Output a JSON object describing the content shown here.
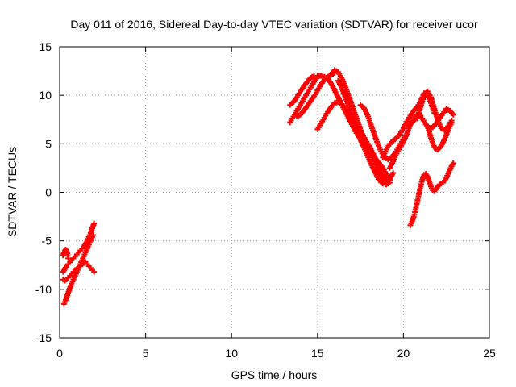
{
  "chart_data": {
    "type": "scatter",
    "title": "Day 011 of 2016, Sidereal Day-to-day VTEC variation (SDTVAR) for receiver ucor",
    "xlabel": "GPS time / hours",
    "ylabel": "SDTVAR / TECUs",
    "xlim": [
      0,
      25
    ],
    "ylim": [
      -15,
      15
    ],
    "x_ticks": [
      0,
      5,
      10,
      15,
      20,
      25
    ],
    "y_ticks": [
      -15,
      -10,
      -5,
      0,
      5,
      10,
      15
    ],
    "x_tick_labels": [
      "0",
      "5",
      "10",
      "15",
      "20",
      "25"
    ],
    "y_tick_labels": [
      "-15",
      "-10",
      "-5",
      "0",
      "5",
      "10",
      "15"
    ],
    "grid": true,
    "marker": "plus",
    "marker_color": "#ff0000",
    "series": [
      {
        "x": [
          0.2,
          0.3,
          0.4,
          0.5,
          0.6,
          0.7,
          0.8,
          0.9,
          1.0,
          1.1,
          1.2,
          1.3,
          1.4,
          1.5,
          1.6,
          1.7,
          1.8,
          1.9,
          2.0
        ],
        "y": [
          -8.2,
          -7.9,
          -7.6,
          -7.4,
          -7.2,
          -7.0,
          -6.8,
          -6.6,
          -6.4,
          -6.2,
          -6.0,
          -5.8,
          -5.6,
          -5.3,
          -5.0,
          -4.6,
          -4.2,
          -3.7,
          -3.2
        ]
      },
      {
        "x": [
          0.25,
          0.35,
          0.45,
          0.55,
          0.65,
          0.75,
          0.85,
          0.95,
          1.05,
          1.15,
          1.25,
          1.35,
          1.45,
          1.55,
          1.65,
          1.75,
          1.85,
          1.95
        ],
        "y": [
          -11.5,
          -11.1,
          -10.6,
          -10.1,
          -9.6,
          -9.2,
          -8.8,
          -8.4,
          -8.0,
          -7.6,
          -7.2,
          -6.8,
          -6.4,
          -6.0,
          -5.6,
          -5.2,
          -4.8,
          -4.4
        ]
      },
      {
        "x": [
          0.2,
          0.3,
          0.4,
          0.5,
          0.6,
          0.7,
          0.8,
          0.9,
          1.0,
          1.1,
          1.2,
          1.3,
          1.4,
          1.5,
          1.6,
          1.7,
          1.8,
          1.9,
          2.0
        ],
        "y": [
          -9.0,
          -9.1,
          -9.0,
          -8.8,
          -8.6,
          -8.4,
          -8.2,
          -8.0,
          -7.9,
          -7.8,
          -7.6,
          -7.4,
          -7.3,
          -7.2,
          -7.4,
          -7.6,
          -7.8,
          -8.0,
          -8.2
        ]
      },
      {
        "x": [
          0.2,
          0.25,
          0.3,
          0.35,
          0.4,
          0.45,
          0.5
        ],
        "y": [
          -6.5,
          -6.2,
          -6.0,
          -5.9,
          -6.0,
          -6.3,
          -6.8
        ]
      },
      {
        "x": [
          13.4,
          13.6,
          13.8,
          14.0,
          14.2,
          14.4,
          14.6,
          14.8,
          15.0
        ],
        "y": [
          7.2,
          7.8,
          8.4,
          9.0,
          9.6,
          10.2,
          10.8,
          11.4,
          11.9
        ]
      },
      {
        "x": [
          13.4,
          13.6,
          13.8,
          14.0,
          14.2,
          14.4,
          14.6,
          14.8
        ],
        "y": [
          9.0,
          9.3,
          9.8,
          10.4,
          10.9,
          11.4,
          11.8,
          12.0
        ]
      },
      {
        "x": [
          13.8,
          14.0,
          14.2,
          14.4,
          14.6,
          14.8,
          15.0,
          15.2,
          15.4,
          15.6,
          15.8,
          16.0
        ],
        "y": [
          7.8,
          8.0,
          8.4,
          8.9,
          9.4,
          9.9,
          10.5,
          11.1,
          11.6,
          11.9,
          12.1,
          12.3
        ]
      },
      {
        "x": [
          15.0,
          15.2,
          15.4,
          15.6,
          15.8,
          16.0,
          16.2,
          16.4,
          16.6,
          16.8,
          17.0,
          17.2,
          17.4,
          17.6,
          17.8,
          18.0,
          18.2,
          18.4,
          18.6,
          18.8,
          19.0,
          19.2,
          19.4
        ],
        "y": [
          6.5,
          7.1,
          7.7,
          8.3,
          8.8,
          9.2,
          9.3,
          9.1,
          8.7,
          8.2,
          7.7,
          7.2,
          6.6,
          6.0,
          5.4,
          4.8,
          4.1,
          3.4,
          2.6,
          1.8,
          1.1,
          1.3,
          2.0
        ]
      },
      {
        "x": [
          15.0,
          15.2,
          15.4,
          15.6,
          15.8,
          16.0,
          16.2,
          16.4,
          16.6,
          16.8,
          17.0,
          17.2,
          17.4,
          17.6,
          17.8,
          18.0,
          18.2,
          18.4,
          18.6,
          18.8,
          19.0,
          19.2
        ],
        "y": [
          12.0,
          12.0,
          11.9,
          11.7,
          11.2,
          10.5,
          9.8,
          9.1,
          8.4,
          7.7,
          7.0,
          6.3,
          5.7,
          5.1,
          4.6,
          4.2,
          3.8,
          3.4,
          3.0,
          2.5,
          1.9,
          1.3
        ]
      },
      {
        "x": [
          15.8,
          16.0,
          16.2,
          16.4,
          16.6,
          16.8,
          17.0,
          17.2,
          17.4,
          17.6,
          17.8,
          18.0,
          18.2,
          18.4,
          18.6,
          18.8,
          19.0,
          19.2
        ],
        "y": [
          12.2,
          12.6,
          12.4,
          11.8,
          11.0,
          10.0,
          9.0,
          8.0,
          7.0,
          6.0,
          5.2,
          4.4,
          3.6,
          2.8,
          2.0,
          1.3,
          0.8,
          1.0
        ]
      },
      {
        "x": [
          16.2,
          16.4,
          16.6,
          16.8,
          17.0,
          17.2,
          17.4,
          17.6,
          17.8,
          18.0,
          18.2,
          18.4,
          18.6,
          18.8,
          19.0
        ],
        "y": [
          11.5,
          10.8,
          9.9,
          9.0,
          8.0,
          7.0,
          6.0,
          5.0,
          4.2,
          3.4,
          2.6,
          1.9,
          1.2,
          0.9,
          1.1
        ]
      },
      {
        "x": [
          17.5,
          17.7,
          17.9,
          18.1,
          18.3,
          18.5,
          18.7,
          18.9,
          19.1,
          19.3,
          19.5,
          19.7,
          19.9,
          20.1
        ],
        "y": [
          9.0,
          8.7,
          8.0,
          7.0,
          6.0,
          5.0,
          4.2,
          3.6,
          3.4,
          3.6,
          4.0,
          4.6,
          5.2,
          5.8
        ]
      },
      {
        "x": [
          18.8,
          19.0,
          19.2,
          19.4,
          19.6,
          19.8,
          20.0,
          20.2,
          20.4,
          20.6,
          20.8,
          21.0,
          21.2,
          21.4,
          21.6,
          21.8
        ],
        "y": [
          3.6,
          4.4,
          5.0,
          5.3,
          5.6,
          6.0,
          6.6,
          7.3,
          7.9,
          8.4,
          8.8,
          9.4,
          10.2,
          10.0,
          9.2,
          8.2
        ]
      },
      {
        "x": [
          19.2,
          19.4,
          19.6,
          19.8,
          20.0,
          20.2,
          20.4,
          20.6,
          20.8,
          21.0
        ],
        "y": [
          2.5,
          3.2,
          4.0,
          4.6,
          5.2,
          6.0,
          7.0,
          7.6,
          8.0,
          7.9
        ]
      },
      {
        "x": [
          20.3,
          20.5,
          20.7,
          20.9,
          21.1,
          21.3,
          21.5,
          21.7,
          21.9,
          22.1,
          22.3,
          22.5,
          22.7,
          22.9
        ],
        "y": [
          6.8,
          7.2,
          7.6,
          7.9,
          7.6,
          7.0,
          6.6,
          6.7,
          7.1,
          7.6,
          8.1,
          8.6,
          8.4,
          8.0
        ]
      },
      {
        "x": [
          20.8,
          21.0,
          21.2,
          21.4,
          21.6,
          21.8,
          22.0,
          22.2,
          22.4,
          22.6,
          22.8
        ],
        "y": [
          7.6,
          8.8,
          10.0,
          10.4,
          9.8,
          8.6,
          7.4,
          6.6,
          6.4,
          6.8,
          7.4
        ]
      },
      {
        "x": [
          21.4,
          21.6,
          21.8,
          22.0,
          22.2,
          22.4,
          22.6,
          22.8
        ],
        "y": [
          6.8,
          5.6,
          4.6,
          4.4,
          4.8,
          5.5,
          6.4,
          7.2
        ]
      },
      {
        "x": [
          20.4,
          20.5,
          20.6,
          20.7,
          20.8,
          20.9,
          21.0,
          21.1,
          21.2,
          21.3,
          21.4,
          21.5,
          21.6,
          21.7,
          21.8,
          21.9,
          22.0,
          22.1,
          22.2,
          22.3,
          22.4,
          22.5,
          22.6,
          22.7,
          22.8,
          22.9
        ],
        "y": [
          -3.4,
          -3.0,
          -2.5,
          -1.8,
          -1.0,
          -0.2,
          0.6,
          1.3,
          1.8,
          1.9,
          1.6,
          1.1,
          0.6,
          0.2,
          0.1,
          0.3,
          0.6,
          0.8,
          0.9,
          1.0,
          1.2,
          1.5,
          1.9,
          2.3,
          2.7,
          3.0
        ]
      }
    ]
  }
}
